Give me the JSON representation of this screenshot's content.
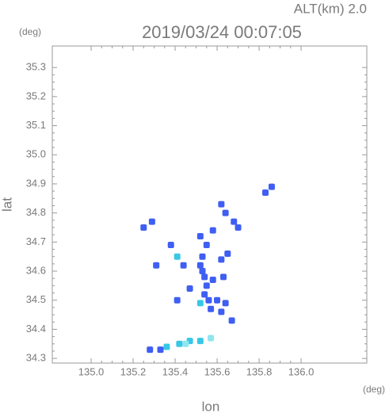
{
  "chart_data": {
    "type": "scatter",
    "title": "2019/03/24 00:07:05",
    "subtitle": "ALT(km) 2.0",
    "xlabel": "lon",
    "ylabel": "lat",
    "xunit": "(deg)",
    "yunit": "(deg)",
    "xlim": [
      134.815,
      136.313
    ],
    "ylim": [
      34.284,
      35.374
    ],
    "xticks": [
      {
        "value": 135,
        "label": "135.0"
      },
      135.2,
      135.4,
      135.6,
      135.8,
      {
        "value": 136,
        "label": "136.0"
      }
    ],
    "yticks": [
      34.3,
      34.4,
      34.5,
      34.6,
      34.7,
      34.8,
      34.9,
      {
        "value": 35,
        "label": "35.0"
      },
      35.1,
      35.2,
      35.3
    ],
    "series": [
      {
        "color": "#3f5ef2",
        "x": [
          135.25,
          135.29,
          135.38,
          135.44,
          135.53,
          135.52,
          135.54,
          135.55,
          135.54,
          135.56,
          135.58,
          135.62,
          135.65,
          135.63,
          135.6,
          135.64,
          135.62,
          135.67,
          135.41,
          135.47,
          135.31,
          135.58,
          135.62,
          135.64,
          135.68,
          135.7,
          135.83,
          135.86,
          135.52,
          135.55,
          135.28,
          135.33,
          135.57,
          135.53
        ],
        "values": [
          34.75,
          34.77,
          34.69,
          34.62,
          34.65,
          34.62,
          34.58,
          34.55,
          34.52,
          34.5,
          34.57,
          34.64,
          34.66,
          34.58,
          34.5,
          34.49,
          34.46,
          34.43,
          34.5,
          34.54,
          34.62,
          34.74,
          34.83,
          34.8,
          34.77,
          34.75,
          34.87,
          34.89,
          34.72,
          34.69,
          34.33,
          34.33,
          34.47,
          34.6
        ]
      },
      {
        "color": "#38c8e6",
        "x": [
          135.41,
          135.52,
          135.36,
          135.42,
          135.47,
          135.52
        ],
        "values": [
          34.65,
          34.49,
          34.34,
          34.35,
          34.36,
          34.36
        ]
      },
      {
        "color": "#8fe6ef",
        "x": [
          135.57,
          135.45
        ],
        "values": [
          34.37,
          34.35
        ]
      }
    ]
  }
}
